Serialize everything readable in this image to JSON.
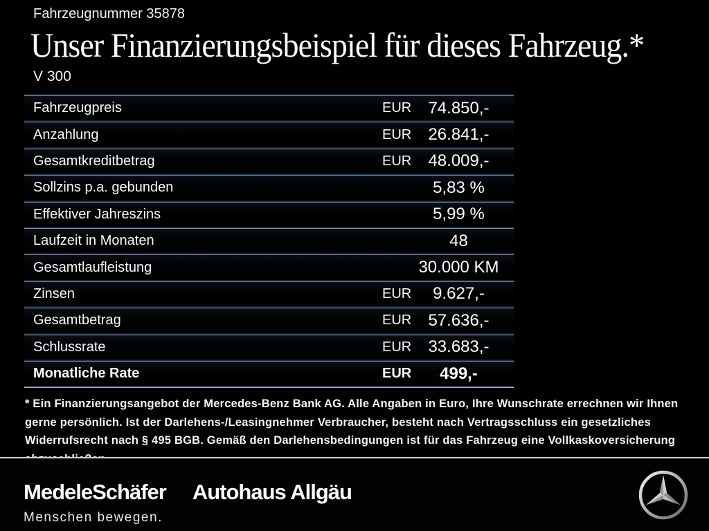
{
  "header": {
    "vehicle_number": "Fahrzeugnummer 35878",
    "title": "Unser Finanzierungsbeispiel für dieses Fahrzeug.*",
    "model": "V 300"
  },
  "table": {
    "rows": [
      {
        "label": "Fahrzeugpreis",
        "currency": "EUR",
        "value": "74.850,-",
        "bold": false
      },
      {
        "label": "Anzahlung",
        "currency": "EUR",
        "value": "26.841,-",
        "bold": false
      },
      {
        "label": "Gesamtkreditbetrag",
        "currency": "EUR",
        "value": "48.009,-",
        "bold": false
      },
      {
        "label": "Sollzins p.a. gebunden",
        "currency": "",
        "value": "5,83 %",
        "bold": false
      },
      {
        "label": "Effektiver Jahreszins",
        "currency": "",
        "value": "5,99 %",
        "bold": false
      },
      {
        "label": "Laufzeit in Monaten",
        "currency": "",
        "value": "48",
        "bold": false
      },
      {
        "label": "Gesamtlaufleistung",
        "currency": "",
        "value": "30.000 KM",
        "bold": false
      },
      {
        "label": "Zinsen",
        "currency": "EUR",
        "value": "9.627,-",
        "bold": false
      },
      {
        "label": "Gesamtbetrag",
        "currency": "EUR",
        "value": "57.636,-",
        "bold": false
      },
      {
        "label": "Schlussrate",
        "currency": "EUR",
        "value": "33.683,-",
        "bold": false
      },
      {
        "label": "Monatliche Rate",
        "currency": "EUR",
        "value": "499,-",
        "bold": true
      }
    ]
  },
  "footnote": "* Ein Finanzierungsangebot der Mercedes-Benz Bank AG. Alle Angaben in Euro, Ihre Wunschrate errechnen wir Ihnen gerne persönlich. Ist der Darlehens-/Leasingnehmer Verbraucher, besteht nach Vertragsschluss ein gesetzliches Widerrufsrecht nach § 495 BGB. Gemäß den Darlehensbedingungen ist für das Fahrzeug eine Vollkaskoversicherung abzuschließen.",
  "footer": {
    "dealer_name_1": "MedeleSchäfer",
    "dealer_name_2": "Autohaus Allgäu",
    "tagline": "Menschen bewegen.",
    "brand_icon": "mercedes-benz-star"
  },
  "colors": {
    "background": "#000000",
    "text": "#ffffff",
    "separator_light": "#a9bccb",
    "separator_glow": "#16283c",
    "footer_divider": "#d0d3d6"
  }
}
